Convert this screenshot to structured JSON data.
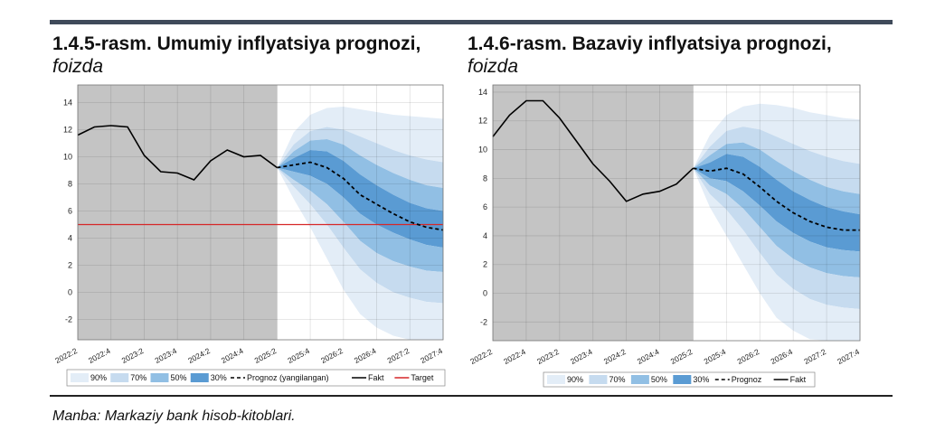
{
  "source": "Manba: Markaziy bank hisob-kitoblari.",
  "colors": {
    "header_bar": "#3f4a5a",
    "fact_area": "#c4c4c4",
    "band_90": "#e3edf7",
    "band_70": "#c6dbef",
    "band_50": "#91bfe4",
    "band_30": "#5a9bd3",
    "target_line": "#d62728",
    "fact_line": "#000000"
  },
  "chart_data": [
    {
      "type": "line",
      "title": "1.4.5-rasm. Umumiy inflyatsiya prognozi",
      "title_main": "1.4.5-rasm. Umumiy inflyatsiya prognozi",
      "title_unit": "foizda",
      "ylim": [
        -3.5,
        15.3
      ],
      "yticks": [
        -2,
        0,
        2,
        4,
        6,
        8,
        10,
        12,
        14
      ],
      "grid": true,
      "forecast_start": "2025:2",
      "x": [
        "2022:2",
        "2022:3",
        "2022:4",
        "2023:1",
        "2023:2",
        "2023:3",
        "2023:4",
        "2024:1",
        "2024:2",
        "2024:3",
        "2024:4",
        "2025:1",
        "2025:2",
        "2025:3",
        "2025:4",
        "2026:1",
        "2026:2",
        "2026:3",
        "2026:4",
        "2027:1",
        "2027:2",
        "2027:3",
        "2027:4"
      ],
      "xtick_labels": [
        "2022:2",
        "2022:4",
        "2023:2",
        "2023:4",
        "2024:2",
        "2024:4",
        "2025:2",
        "2025:4",
        "2026:2",
        "2026:4",
        "2027:2",
        "2027:4"
      ],
      "fakt": [
        11.6,
        12.2,
        12.3,
        12.2,
        10.1,
        8.9,
        8.8,
        8.3,
        9.7,
        10.5,
        10.0,
        10.1,
        9.2
      ],
      "prognoz": [
        9.2,
        9.4,
        9.6,
        9.2,
        8.4,
        7.2,
        6.5,
        5.8,
        5.2,
        4.8,
        4.6
      ],
      "target": 5,
      "fan": {
        "upper_90": [
          9.2,
          11.8,
          13.1,
          13.6,
          13.7,
          13.5,
          13.3,
          13.1,
          13.0,
          12.9,
          12.8
        ],
        "upper_70": [
          9.2,
          10.9,
          11.9,
          12.2,
          12.0,
          11.5,
          11.0,
          10.5,
          10.1,
          9.8,
          9.6
        ],
        "upper_50": [
          9.2,
          10.4,
          11.2,
          11.3,
          10.9,
          10.1,
          9.4,
          8.8,
          8.3,
          7.9,
          7.7
        ],
        "upper_30": [
          9.2,
          9.9,
          10.5,
          10.4,
          9.7,
          8.7,
          7.9,
          7.2,
          6.6,
          6.2,
          6.0
        ],
        "lower_30": [
          9.2,
          8.9,
          8.6,
          8.0,
          7.0,
          5.8,
          5.0,
          4.4,
          3.9,
          3.5,
          3.3
        ],
        "lower_50": [
          9.2,
          8.3,
          7.5,
          6.5,
          5.2,
          3.8,
          2.9,
          2.3,
          1.9,
          1.6,
          1.5
        ],
        "lower_70": [
          9.2,
          7.8,
          6.5,
          5.0,
          3.3,
          1.7,
          0.7,
          0.0,
          -0.4,
          -0.7,
          -0.8
        ],
        "lower_90": [
          9.2,
          6.9,
          4.8,
          2.5,
          0.2,
          -1.6,
          -2.6,
          -3.2,
          -3.5,
          -3.5,
          -3.5
        ]
      },
      "legend": [
        "90%",
        "70%",
        "50%",
        "30%",
        "Prognoz (yangilangan)",
        "Fakt",
        "Target"
      ]
    },
    {
      "type": "line",
      "title": "1.4.6-rasm. Bazaviy inflyatsiya prognozi",
      "title_main": "1.4.6-rasm. Bazaviy inflyatsiya prognozi",
      "title_unit": "foizda",
      "ylim": [
        -3.3,
        14.5
      ],
      "yticks": [
        -2,
        0,
        2,
        4,
        6,
        8,
        10,
        12,
        14
      ],
      "grid": true,
      "forecast_start": "2025:2",
      "x": [
        "2022:2",
        "2022:3",
        "2022:4",
        "2023:1",
        "2023:2",
        "2023:3",
        "2023:4",
        "2024:1",
        "2024:2",
        "2024:3",
        "2024:4",
        "2025:1",
        "2025:2",
        "2025:3",
        "2025:4",
        "2026:1",
        "2026:2",
        "2026:3",
        "2026:4",
        "2027:1",
        "2027:2",
        "2027:3",
        "2027:4"
      ],
      "xtick_labels": [
        "2022:2",
        "2022:4",
        "2023:2",
        "2023:4",
        "2024:2",
        "2024:4",
        "2025:2",
        "2025:4",
        "2026:2",
        "2026:4",
        "2027:2",
        "2027:4"
      ],
      "fakt": [
        10.9,
        12.4,
        13.4,
        13.4,
        12.2,
        10.6,
        9.0,
        7.8,
        6.4,
        6.9,
        7.1,
        7.6,
        8.7
      ],
      "prognoz": [
        8.7,
        8.5,
        8.7,
        8.3,
        7.4,
        6.4,
        5.6,
        5.0,
        4.6,
        4.4,
        4.4
      ],
      "fan": {
        "upper_90": [
          8.7,
          11.0,
          12.4,
          13.0,
          13.2,
          13.1,
          12.9,
          12.6,
          12.4,
          12.2,
          12.1
        ],
        "upper_70": [
          8.7,
          10.2,
          11.3,
          11.6,
          11.4,
          10.9,
          10.4,
          9.9,
          9.5,
          9.2,
          9.0
        ],
        "upper_50": [
          8.7,
          9.6,
          10.4,
          10.5,
          10.0,
          9.2,
          8.5,
          7.9,
          7.4,
          7.1,
          6.9
        ],
        "upper_30": [
          8.7,
          9.1,
          9.7,
          9.5,
          8.8,
          7.9,
          7.1,
          6.5,
          6.0,
          5.7,
          5.5
        ],
        "lower_30": [
          8.7,
          8.0,
          7.8,
          7.1,
          6.1,
          5.0,
          4.2,
          3.6,
          3.2,
          3.0,
          2.9
        ],
        "lower_50": [
          8.7,
          7.5,
          6.9,
          5.9,
          4.6,
          3.3,
          2.4,
          1.8,
          1.4,
          1.2,
          1.1
        ],
        "lower_70": [
          8.7,
          6.9,
          5.8,
          4.4,
          2.8,
          1.3,
          0.3,
          -0.4,
          -0.8,
          -1.0,
          -1.1
        ],
        "lower_90": [
          8.7,
          6.0,
          4.0,
          2.0,
          0.0,
          -1.7,
          -2.6,
          -3.2,
          -3.3,
          -3.3,
          -3.3
        ]
      },
      "legend": [
        "90%",
        "70%",
        "50%",
        "30%",
        "Prognoz",
        "Fakt"
      ]
    }
  ]
}
